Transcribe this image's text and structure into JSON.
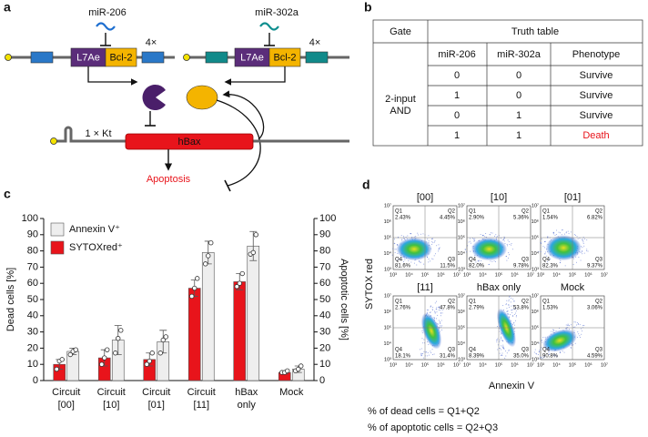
{
  "panel_labels": [
    "a",
    "b",
    "c",
    "d"
  ],
  "diagram": {
    "mirna_1": "miR-206",
    "mirna_2": "miR-302a",
    "l7ae": "L7Ae",
    "bcl2": "Bcl-2",
    "repeat": "4×",
    "kt": "1 × Kt",
    "hbax": "hBax",
    "outcome": "Apoptosis"
  },
  "table": {
    "header": [
      "Gate",
      "Truth table"
    ],
    "subheader": [
      "miR-206",
      "miR-302a",
      "Phenotype"
    ],
    "gate": [
      "2-input",
      "AND"
    ],
    "rows": [
      [
        "0",
        "0",
        "Survive"
      ],
      [
        "1",
        "0",
        "Survive"
      ],
      [
        "0",
        "1",
        "Survive"
      ],
      [
        "1",
        "1",
        "Death"
      ]
    ]
  },
  "chart_data": {
    "type": "bar",
    "y_label": "Dead cells [%]",
    "y2_label": "Apoptotic cells [%]",
    "categories": [
      [
        "Circuit",
        "[00]"
      ],
      [
        "Circuit",
        "[10]"
      ],
      [
        "Circuit",
        "[01]"
      ],
      [
        "Circuit",
        "[11]"
      ],
      [
        "hBax",
        "only"
      ],
      [
        "Mock"
      ]
    ],
    "series": [
      {
        "name": "SYTOXred⁺",
        "color": "#e8141b",
        "axis": "y",
        "values": [
          10,
          14,
          13,
          57,
          61,
          5
        ],
        "errors": [
          3,
          5,
          4,
          5,
          5,
          1
        ],
        "points": [
          [
            7,
            12,
            13
          ],
          [
            10,
            14,
            19
          ],
          [
            10,
            12,
            17
          ],
          [
            52,
            57,
            63
          ],
          [
            58,
            60,
            66
          ],
          [
            5,
            5,
            6
          ]
        ]
      },
      {
        "name": "Annexin V⁺",
        "color": "#eeeeee",
        "axis": "y2",
        "values": [
          18,
          25,
          24,
          79,
          83,
          7
        ],
        "errors": [
          2,
          9,
          7,
          7,
          9,
          2
        ],
        "points": [
          [
            16,
            18,
            19
          ],
          [
            17,
            26,
            31
          ],
          [
            17,
            25,
            27
          ],
          [
            72,
            77,
            85
          ],
          [
            78,
            79,
            90
          ],
          [
            6,
            7,
            9
          ]
        ]
      }
    ],
    "ylim": [
      0,
      100
    ],
    "yticks": [
      0,
      10,
      20,
      30,
      40,
      50,
      60,
      70,
      80,
      90,
      100
    ],
    "y2lim": [
      0,
      100
    ],
    "y2ticks": [
      0,
      10,
      20,
      30,
      40,
      50,
      60,
      70,
      80,
      90,
      100
    ],
    "legend": "upper left",
    "grid": false
  },
  "flow": {
    "x_label": "Annexin V",
    "y_label": "SYTOX red",
    "ticks": [
      "10³",
      "10⁴",
      "10⁵",
      "10⁶",
      "10⁷"
    ],
    "plots": [
      {
        "title": "[00]",
        "quadrants": [
          [
            "Q1",
            "2.43%"
          ],
          [
            "Q2",
            "4.45%"
          ],
          [
            "Q3",
            "11.5%"
          ],
          [
            "Q4",
            "81.6%"
          ]
        ]
      },
      {
        "title": "[10]",
        "quadrants": [
          [
            "Q1",
            "2.90%"
          ],
          [
            "Q2",
            "5.36%"
          ],
          [
            "Q3",
            "9.78%"
          ],
          [
            "Q4",
            "82.0%"
          ]
        ]
      },
      {
        "title": "[01]",
        "quadrants": [
          [
            "Q1",
            "1.54%"
          ],
          [
            "Q2",
            "6.82%"
          ],
          [
            "Q3",
            "9.37%"
          ],
          [
            "Q4",
            "82.3%"
          ]
        ]
      },
      {
        "title": "[11]",
        "quadrants": [
          [
            "Q1",
            "2.76%"
          ],
          [
            "Q2",
            "47.8%"
          ],
          [
            "Q3",
            "31.4%"
          ],
          [
            "Q4",
            "18.1%"
          ]
        ]
      },
      {
        "title": "hBax only",
        "quadrants": [
          [
            "Q1",
            "2.79%"
          ],
          [
            "Q2",
            "53.8%"
          ],
          [
            "Q3",
            "35.0%"
          ],
          [
            "Q4",
            "8.39%"
          ]
        ]
      },
      {
        "title": "Mock",
        "quadrants": [
          [
            "Q1",
            "1.53%"
          ],
          [
            "Q2",
            "3.06%"
          ],
          [
            "Q3",
            "4.59%"
          ],
          [
            "Q4",
            "90.8%"
          ]
        ]
      }
    ],
    "footnotes": [
      "% of dead cells = Q1+Q2",
      "% of apoptotic cells = Q2+Q3"
    ]
  }
}
